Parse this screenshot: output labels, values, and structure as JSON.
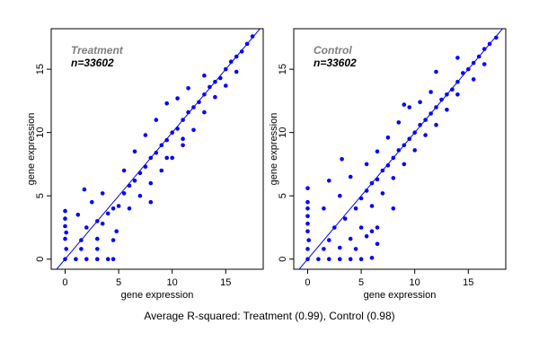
{
  "chart_data": [
    {
      "type": "scatter",
      "title": "",
      "annotation_name": "Treatment",
      "annotation_n": "n=33602",
      "xlabel": "gene expression",
      "ylabel": "gene expression",
      "xlim": [
        -1.3,
        18.5
      ],
      "ylim": [
        -0.8,
        18.2
      ],
      "xticks": [
        0,
        5,
        10,
        15
      ],
      "yticks": [
        0,
        5,
        10,
        15
      ],
      "reference_line": "y = x",
      "point_color": "#0000ff",
      "line_color": "#0000ff",
      "grid": false,
      "points": [
        [
          0,
          0
        ],
        [
          0.1,
          0.8
        ],
        [
          0,
          1.6
        ],
        [
          0.1,
          2.1
        ],
        [
          0,
          2.6
        ],
        [
          0,
          3.2
        ],
        [
          0,
          3.8
        ],
        [
          1,
          0
        ],
        [
          2,
          0
        ],
        [
          3,
          0
        ],
        [
          4,
          0
        ],
        [
          4.5,
          0
        ],
        [
          1.5,
          0.8
        ],
        [
          3,
          0.8
        ],
        [
          4.5,
          1.5
        ],
        [
          1.5,
          1.5
        ],
        [
          3,
          1.6
        ],
        [
          4.8,
          2.2
        ],
        [
          1.2,
          3.5
        ],
        [
          2.5,
          4.5
        ],
        [
          1.8,
          5.5
        ],
        [
          3.5,
          5.2
        ],
        [
          2,
          2.5
        ],
        [
          3,
          3
        ],
        [
          3.5,
          2.8
        ],
        [
          4,
          3.6
        ],
        [
          4.5,
          4
        ],
        [
          5,
          4.2
        ],
        [
          5.5,
          5.2
        ],
        [
          6,
          5.8
        ],
        [
          6.5,
          6.2
        ],
        [
          7,
          6.8
        ],
        [
          7.5,
          7.3
        ],
        [
          8,
          8
        ],
        [
          8.5,
          8.4
        ],
        [
          9,
          9
        ],
        [
          9.5,
          9.4
        ],
        [
          10,
          10
        ],
        [
          10.5,
          10.3
        ],
        [
          11,
          11
        ],
        [
          11.5,
          11.6
        ],
        [
          12,
          12
        ],
        [
          12.5,
          12.4
        ],
        [
          13,
          13
        ],
        [
          13.5,
          13.6
        ],
        [
          14,
          14
        ],
        [
          14.5,
          14.3
        ],
        [
          15,
          15
        ],
        [
          15.5,
          15.6
        ],
        [
          16,
          16
        ],
        [
          16.5,
          16.4
        ],
        [
          17,
          17
        ],
        [
          17.5,
          17.6
        ],
        [
          5.5,
          7
        ],
        [
          6.5,
          8.5
        ],
        [
          7.5,
          9.8
        ],
        [
          8.5,
          11
        ],
        [
          9.5,
          12.3
        ],
        [
          10.5,
          12.7
        ],
        [
          11.5,
          13.5
        ],
        [
          6,
          4
        ],
        [
          7,
          5
        ],
        [
          8,
          6
        ],
        [
          9,
          7
        ],
        [
          10,
          8
        ],
        [
          11,
          9.5
        ],
        [
          12,
          10.2
        ],
        [
          13,
          11.6
        ],
        [
          14,
          12.8
        ],
        [
          8,
          4.5
        ],
        [
          9.5,
          8
        ],
        [
          11,
          9
        ],
        [
          13,
          14.5
        ],
        [
          15,
          13.7
        ],
        [
          16,
          14.8
        ]
      ]
    },
    {
      "type": "scatter",
      "title": "",
      "annotation_name": "Control",
      "annotation_n": "n=33602",
      "xlabel": "gene expression",
      "ylabel": "gene expression",
      "xlim": [
        -1.3,
        18.5
      ],
      "ylim": [
        -0.8,
        18.2
      ],
      "xticks": [
        0,
        5,
        10,
        15
      ],
      "yticks": [
        0,
        5,
        10,
        15
      ],
      "reference_line": "y = x",
      "point_color": "#0000ff",
      "line_color": "#0000ff",
      "grid": false,
      "points": [
        [
          0,
          0
        ],
        [
          0,
          0.8
        ],
        [
          0.1,
          1.5
        ],
        [
          0,
          2.2
        ],
        [
          0,
          2.8
        ],
        [
          0,
          3.4
        ],
        [
          0,
          4
        ],
        [
          0,
          4.5
        ],
        [
          0,
          5.6
        ],
        [
          1,
          0
        ],
        [
          2,
          0
        ],
        [
          3,
          0
        ],
        [
          4,
          0
        ],
        [
          5,
          0
        ],
        [
          6,
          0.1
        ],
        [
          1.5,
          0.8
        ],
        [
          3,
          0.9
        ],
        [
          4.5,
          0.8
        ],
        [
          2,
          1.5
        ],
        [
          4,
          1.6
        ],
        [
          5.5,
          1.8
        ],
        [
          6.5,
          1.2
        ],
        [
          5,
          2.5
        ],
        [
          6,
          2.2
        ],
        [
          1.5,
          4
        ],
        [
          3,
          5
        ],
        [
          2,
          6.2
        ],
        [
          3.2,
          7.9
        ],
        [
          4,
          6.5
        ],
        [
          2.5,
          2.5
        ],
        [
          3.5,
          3.2
        ],
        [
          4.5,
          4
        ],
        [
          5,
          4.8
        ],
        [
          5.5,
          5.4
        ],
        [
          6,
          6
        ],
        [
          6.5,
          6.3
        ],
        [
          7,
          7
        ],
        [
          7.5,
          7.4
        ],
        [
          8,
          8
        ],
        [
          8.5,
          8.6
        ],
        [
          9,
          9
        ],
        [
          9.5,
          9.5
        ],
        [
          10,
          10
        ],
        [
          10.5,
          10.6
        ],
        [
          11,
          11
        ],
        [
          11.5,
          11.5
        ],
        [
          12,
          12
        ],
        [
          12.5,
          12.6
        ],
        [
          13,
          13
        ],
        [
          13.5,
          13.4
        ],
        [
          14,
          14
        ],
        [
          14.5,
          14.7
        ],
        [
          15,
          15
        ],
        [
          15.5,
          15.5
        ],
        [
          16,
          16
        ],
        [
          16.5,
          16.6
        ],
        [
          17,
          17
        ],
        [
          17.6,
          17.5
        ],
        [
          5.5,
          7.5
        ],
        [
          6.5,
          8.5
        ],
        [
          7.5,
          9.6
        ],
        [
          8.5,
          10.8
        ],
        [
          9.5,
          12
        ],
        [
          10.5,
          12.4
        ],
        [
          11.5,
          13.2
        ],
        [
          6,
          4.2
        ],
        [
          7,
          5.2
        ],
        [
          8,
          6.4
        ],
        [
          9,
          7.5
        ],
        [
          10,
          8.6
        ],
        [
          11,
          9.8
        ],
        [
          12,
          10.6
        ],
        [
          13,
          11.8
        ],
        [
          14,
          13
        ],
        [
          8,
          4
        ],
        [
          9,
          12.2
        ],
        [
          12,
          14.8
        ],
        [
          14,
          15.9
        ],
        [
          15.5,
          14.2
        ],
        [
          16.5,
          15.4
        ],
        [
          6.5,
          2.5
        ]
      ]
    }
  ],
  "caption": "Average R-squared: Treatment (0.99), Control (0.98)"
}
